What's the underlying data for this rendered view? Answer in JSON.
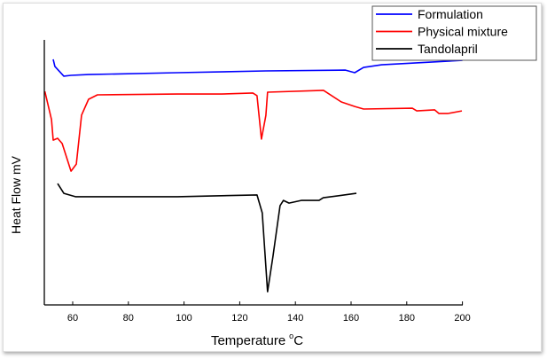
{
  "chart_data": {
    "type": "line",
    "title": "",
    "xlabel": "Temperature",
    "xlabel_unit_sup": "o",
    "xlabel_unit": "C",
    "ylabel": "Heat Flow mV",
    "xlim": [
      50,
      200
    ],
    "ylim": [
      0,
      100
    ],
    "xticks": [
      60,
      80,
      100,
      120,
      140,
      160,
      180,
      200
    ],
    "grid": false,
    "legend_position": "top-right",
    "series": [
      {
        "name": "Formulation",
        "color": "#0000ff",
        "x": [
          53,
          53.6,
          56.8,
          59.4,
          65.7,
          97.6,
          129.4,
          158,
          161.3,
          164.5,
          171,
          200
        ],
        "y": [
          93.3,
          90.6,
          86.9,
          87.2,
          87.5,
          88.2,
          88.9,
          89.2,
          88.2,
          90.2,
          91.2,
          92.9
        ]
      },
      {
        "name": "Physical mixture",
        "color": "#ff0000",
        "x": [
          50,
          52.4,
          53.0,
          54.6,
          56.2,
          59.4,
          61.3,
          63.2,
          65.7,
          68.9,
          97.6,
          113.5,
          124.7,
          126.2,
          127.8,
          129.4,
          130,
          150.1,
          156.5,
          161.3,
          164.5,
          182,
          183.6,
          190,
          191.6,
          194.7,
          199.8
        ],
        "y": [
          81.1,
          70.4,
          62.6,
          63.3,
          61.3,
          50.8,
          53.5,
          72.1,
          78.1,
          79.8,
          80.1,
          80.1,
          80.5,
          79.5,
          63.0,
          72.0,
          80.8,
          81.5,
          77.1,
          75.4,
          74.4,
          74.7,
          73.7,
          74.1,
          72.7,
          72.7,
          73.7
        ]
      },
      {
        "name": "Tandolapril",
        "color": "#000000",
        "x": [
          54.6,
          56.8,
          61,
          97.6,
          126.2,
          128.1,
          130,
          131.9,
          134.5,
          135.7,
          137.7,
          142.1,
          148.5,
          150,
          161.9
        ],
        "y": [
          46.1,
          42.4,
          41.1,
          41.1,
          41.8,
          35,
          5,
          18.2,
          37.7,
          39.7,
          38.7,
          39.7,
          39.7,
          40.7,
          42.4
        ]
      }
    ]
  }
}
